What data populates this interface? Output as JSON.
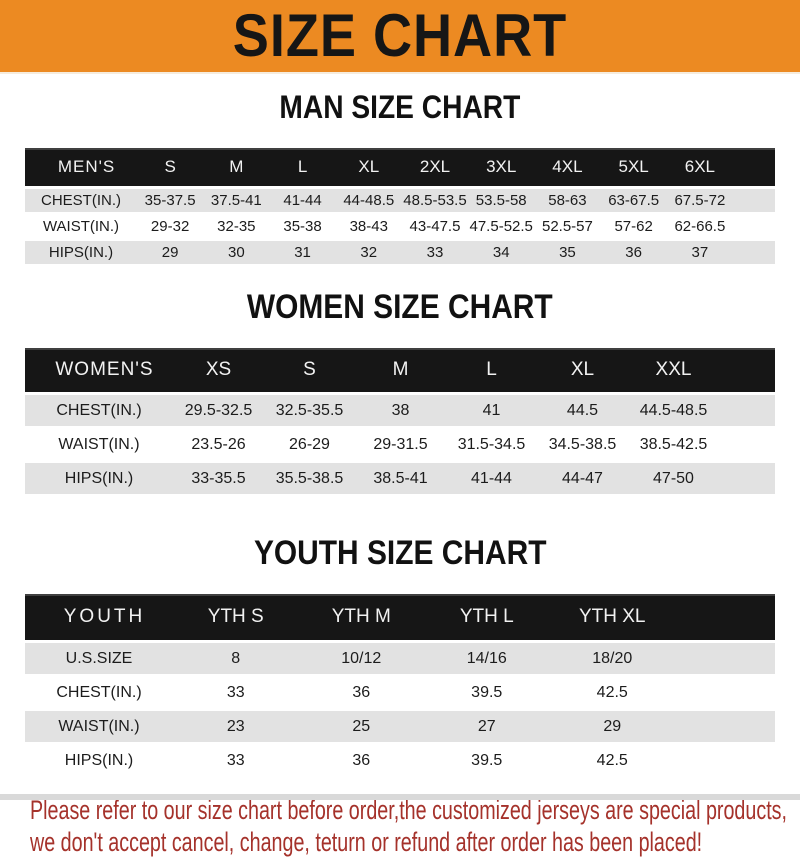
{
  "colors": {
    "banner": "#EC8A22",
    "bar": "#161616",
    "row": "#E2E2E2",
    "red": "#A5322B"
  },
  "banner": {
    "title": "SIZE CHART"
  },
  "sections": {
    "men": {
      "heading": "MAN SIZE CHART"
    },
    "women": {
      "heading": "WOMEN SIZE CHART"
    },
    "youth": {
      "heading": "YOUTH SIZE CHART"
    }
  },
  "tables": {
    "men": {
      "corner": "MEN'S",
      "columns": [
        "S",
        "M",
        "L",
        "XL",
        "2XL",
        "3XL",
        "4XL",
        "5XL",
        "6XL"
      ],
      "rows": [
        {
          "label": "CHEST(IN.)",
          "values": [
            "35-37.5",
            "37.5-41",
            "41-44",
            "44-48.5",
            "48.5-53.5",
            "53.5-58",
            "58-63",
            "63-67.5",
            "67.5-72"
          ]
        },
        {
          "label": "WAIST(IN.)",
          "values": [
            "29-32",
            "32-35",
            "35-38",
            "38-43",
            "43-47.5",
            "47.5-52.5",
            "52.5-57",
            "57-62",
            "62-66.5"
          ]
        },
        {
          "label": "HIPS(IN.)",
          "values": [
            "29",
            "30",
            "31",
            "32",
            "33",
            "34",
            "35",
            "36",
            "37"
          ]
        }
      ]
    },
    "women": {
      "corner": "WOMEN'S",
      "columns": [
        "XS",
        "S",
        "M",
        "L",
        "XL",
        "XXL"
      ],
      "rows": [
        {
          "label": "CHEST(IN.)",
          "values": [
            "29.5-32.5",
            "32.5-35.5",
            "38",
            "41",
            "44.5",
            "44.5-48.5"
          ]
        },
        {
          "label": "WAIST(IN.)",
          "values": [
            "23.5-26",
            "26-29",
            "29-31.5",
            "31.5-34.5",
            "34.5-38.5",
            "38.5-42.5"
          ]
        },
        {
          "label": "HIPS(IN.)",
          "values": [
            "33-35.5",
            "35.5-38.5",
            "38.5-41",
            "41-44",
            "44-47",
            "47-50"
          ]
        }
      ]
    },
    "youth": {
      "corner": "YOUTH",
      "columns": [
        "YTH S",
        "YTH M",
        "YTH L",
        "YTH XL"
      ],
      "rows": [
        {
          "label": "U.S.SIZE",
          "values": [
            "8",
            "10/12",
            "14/16",
            "18/20"
          ]
        },
        {
          "label": "CHEST(IN.)",
          "values": [
            "33",
            "36",
            "39.5",
            "42.5"
          ]
        },
        {
          "label": "WAIST(IN.)",
          "values": [
            "23",
            "25",
            "27",
            "29"
          ]
        },
        {
          "label": "HIPS(IN.)",
          "values": [
            "33",
            "36",
            "39.5",
            "42.5"
          ]
        }
      ]
    }
  },
  "footer": {
    "line1": "Please refer to our size chart before order,the customized jerseys are special products,",
    "line2": "we don't accept cancel, change, teturn or refund after order has been placed!"
  }
}
